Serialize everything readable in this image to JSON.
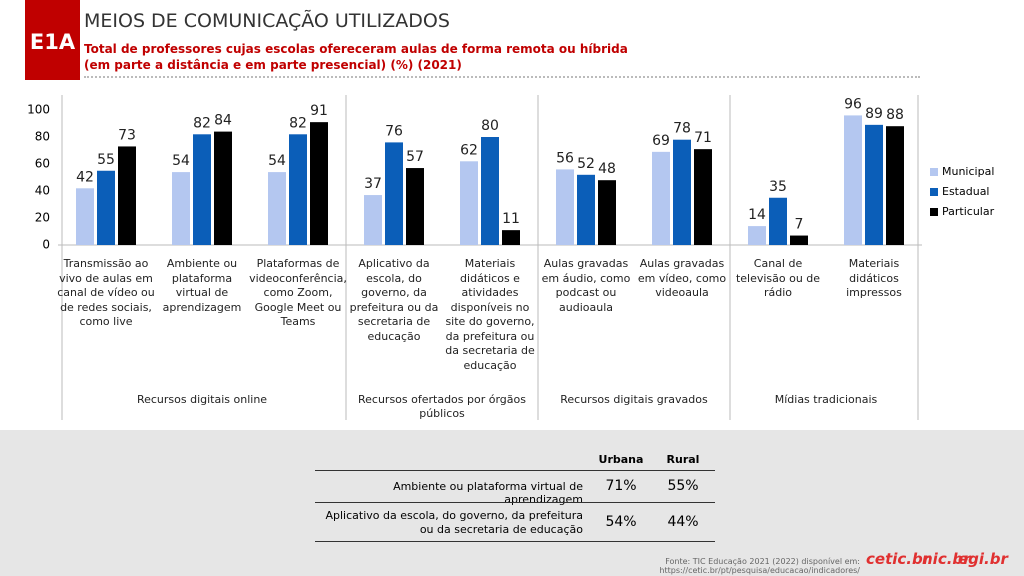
{
  "badge": "E1A",
  "chart_data": {
    "type": "bar",
    "title": "MEIOS DE COMUNICAÇÃO UTILIZADOS",
    "subtitle": [
      "Total de professores cujas escolas ofereceram aulas de forma remota ou híbrida",
      "(em parte a distância e em parte presencial) (%) (2021)"
    ],
    "groups": [
      {
        "name": "Recursos digitais online",
        "categories": [
          "Transmissão ao vivo de aulas em canal de vídeo ou de redes sociais, como live",
          "Ambiente ou plataforma virtual de aprendizagem",
          "Plataformas de videoconferência, como Zoom, Google Meet ou Teams"
        ]
      },
      {
        "name": "Recursos ofertados por órgãos públicos",
        "categories": [
          "Aplicativo da escola, do governo, da prefeitura ou da secretaria de educação",
          "Materiais didáticos e atividades disponíveis no site do governo, da prefeitura ou da secretaria de educação"
        ]
      },
      {
        "name": "Recursos digitais gravados",
        "categories": [
          "Aulas gravadas em áudio, como podcast ou audioaula",
          "Aulas gravadas em vídeo, como videoaula"
        ]
      },
      {
        "name": "Mídias tradicionais",
        "categories": [
          "Canal de televisão ou de rádio",
          "Materiais didáticos impressos"
        ]
      }
    ],
    "series": [
      {
        "name": "Municipal",
        "color": "#b4c7f0",
        "values": [
          42,
          54,
          54,
          37,
          62,
          56,
          69,
          14,
          96
        ]
      },
      {
        "name": "Estadual",
        "color": "#0b5eb8",
        "values": [
          55,
          82,
          82,
          76,
          80,
          52,
          78,
          35,
          89
        ]
      },
      {
        "name": "Particular",
        "color": "#000000",
        "values": [
          73,
          84,
          91,
          57,
          11,
          48,
          71,
          7,
          88
        ]
      }
    ],
    "ylim": [
      0,
      100
    ],
    "yticks": [
      0,
      20,
      40,
      60,
      80,
      100
    ],
    "legend": "right"
  },
  "table": {
    "columns": [
      "Urbana",
      "Rural"
    ],
    "rows": [
      {
        "label": "Ambiente ou plataforma virtual de aprendizagem",
        "values": [
          "71%",
          "55%"
        ]
      },
      {
        "label": "Aplicativo da escola, do governo, da prefeitura ou da secretaria de educação",
        "values": [
          "54%",
          "44%"
        ]
      }
    ]
  },
  "footer": {
    "source": "Fonte: TIC Educação 2021 (2022) disponível em: https://cetic.br/pt/pesquisa/educacao/indicadores/",
    "logos": [
      "cetic.br",
      "nic.br",
      "egi.br"
    ]
  }
}
